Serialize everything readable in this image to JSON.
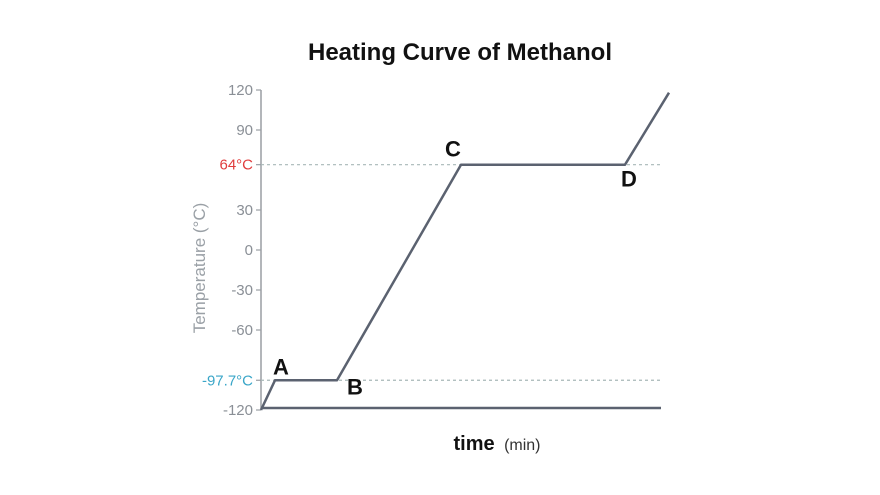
{
  "chart_data": {
    "type": "line",
    "title": "Heating Curve of Methanol",
    "xlabel_main": "time",
    "xlabel_unit": "(min)",
    "ylabel": "Temperature (°C)",
    "ylim": [
      -120,
      120
    ],
    "xlim": [
      0,
      100
    ],
    "y_ticks": [
      {
        "value": 120,
        "label": "120"
      },
      {
        "value": 90,
        "label": "90"
      },
      {
        "value": 30,
        "label": "30"
      },
      {
        "value": 0,
        "label": "0"
      },
      {
        "value": -30,
        "label": "-30"
      },
      {
        "value": -60,
        "label": "-60"
      },
      {
        "value": -120,
        "label": "-120"
      }
    ],
    "markers": [
      {
        "value": 64,
        "label": "64°C",
        "color": "#e03c3c"
      },
      {
        "value": -97.7,
        "label": "-97.7°C",
        "color": "#3aa6c8"
      }
    ],
    "series": [
      {
        "name": "Methanol",
        "color": "#5b6270",
        "x": [
          0,
          3.5,
          19,
          50,
          91,
          102
        ],
        "y": [
          -120,
          -97.7,
          -97.7,
          64,
          64,
          118
        ]
      }
    ],
    "points": [
      {
        "label": "A",
        "x": 3.5,
        "y": -97.7
      },
      {
        "label": "B",
        "x": 19,
        "y": -97.7
      },
      {
        "label": "C",
        "x": 50,
        "y": 64
      },
      {
        "label": "D",
        "x": 91,
        "y": 64
      }
    ],
    "grid": false
  }
}
